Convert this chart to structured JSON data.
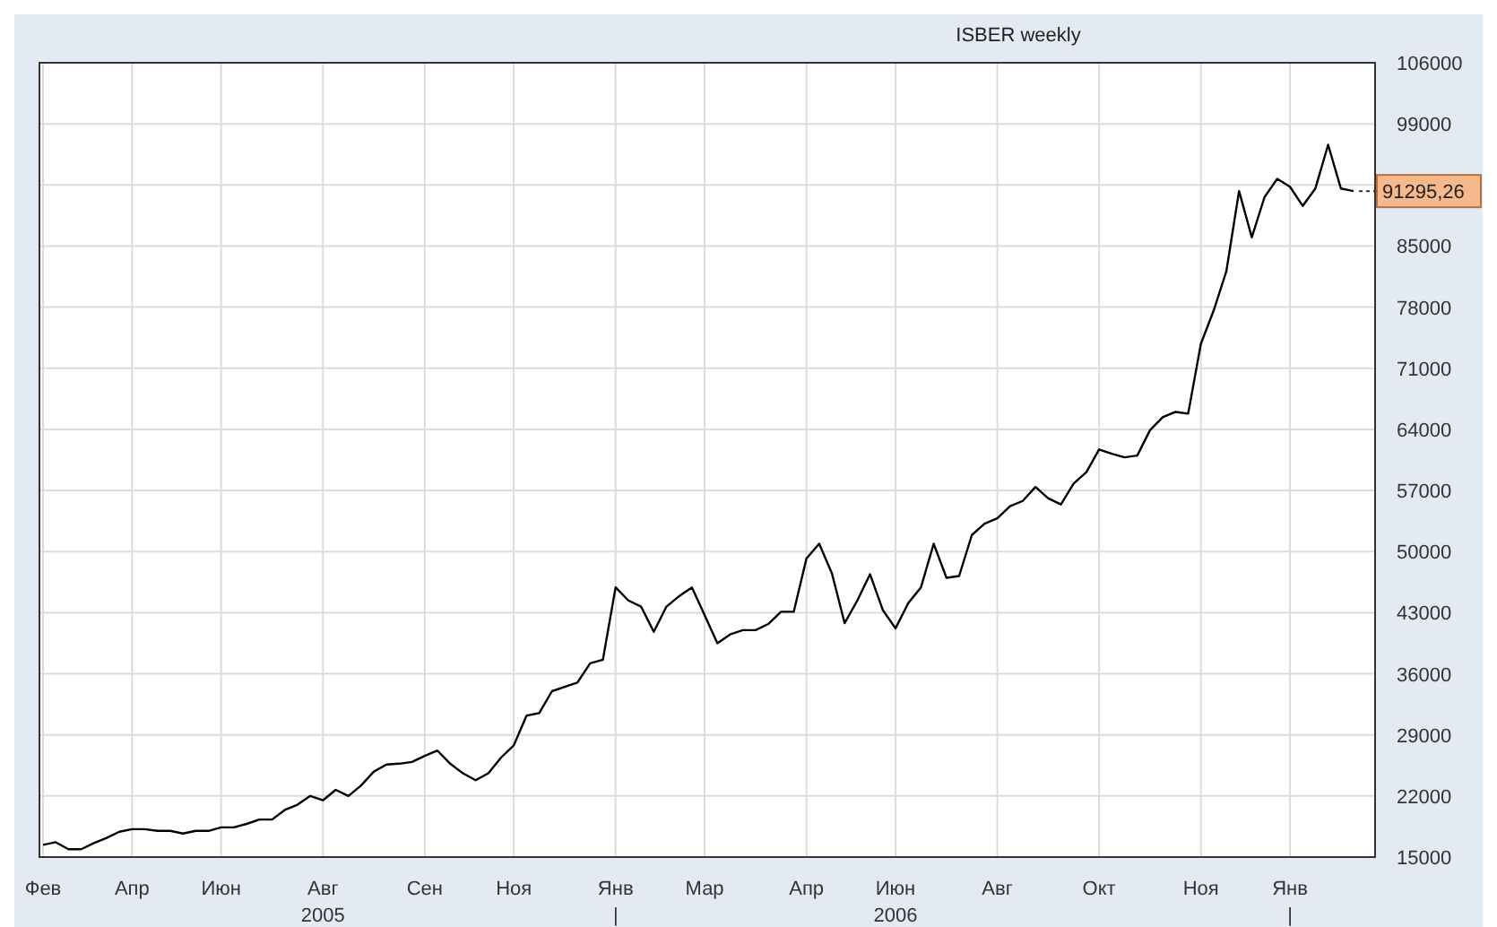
{
  "chart_data": {
    "type": "line",
    "title": "ISBER weekly",
    "categories": [
      "Фев",
      null,
      null,
      null,
      null,
      null,
      null,
      "Апр",
      null,
      null,
      null,
      null,
      null,
      null,
      "Июн",
      null,
      null,
      null,
      null,
      null,
      null,
      null,
      "Авг\n2005",
      null,
      null,
      null,
      null,
      null,
      null,
      null,
      "Сен",
      null,
      null,
      null,
      null,
      null,
      null,
      "Ноя",
      null,
      null,
      null,
      null,
      null,
      null,
      null,
      "Янв\n|",
      null,
      null,
      null,
      null,
      null,
      null,
      "Мар",
      null,
      null,
      null,
      null,
      null,
      null,
      null,
      "Апр",
      null,
      null,
      null,
      null,
      null,
      null,
      "Июн\n2006",
      null,
      null,
      null,
      null,
      null,
      null,
      null,
      "Авг",
      null,
      null,
      null,
      null,
      null,
      null,
      null,
      "Окт",
      null,
      null,
      null,
      null,
      null,
      null,
      null,
      "Ноя",
      null,
      null,
      null,
      null,
      null,
      null,
      "Янв\n|",
      null,
      null,
      null,
      null,
      null
    ],
    "series": [
      {
        "color": "#000000",
        "values": [
          16400,
          16700,
          15900,
          15900,
          16600,
          17200,
          17900,
          18200,
          18200,
          18000,
          18000,
          17700,
          18000,
          18000,
          18400,
          18400,
          18800,
          19300,
          19300,
          20400,
          21000,
          22000,
          21500,
          22700,
          22000,
          23200,
          24800,
          25600,
          25700,
          25900,
          26600,
          27200,
          25700,
          24600,
          23800,
          24600,
          26400,
          27800,
          31200,
          31500,
          34000,
          34500,
          35000,
          37200,
          37600,
          45900,
          44400,
          43700,
          40800,
          43700,
          44900,
          45900,
          42700,
          39500,
          40500,
          41000,
          41000,
          41700,
          43100,
          43100,
          49200,
          50900,
          47500,
          41800,
          44400,
          47400,
          43300,
          41200,
          44100,
          45900,
          50900,
          47000,
          47200,
          51900,
          53200,
          53800,
          55200,
          55800,
          57400,
          56100,
          55400,
          57800,
          59100,
          61700,
          61200,
          60800,
          61000,
          63900,
          65400,
          66000,
          65800,
          73800,
          77600,
          82100,
          91300,
          86000,
          90600,
          92700,
          91800,
          89600,
          91600,
          96600,
          91600,
          91295.26
        ]
      }
    ],
    "ylim": [
      15000,
      106000
    ],
    "yticks": [
      15000,
      22000,
      29000,
      36000,
      43000,
      50000,
      57000,
      64000,
      71000,
      78000,
      85000,
      {
        "value": 92000,
        "label": null
      },
      99000,
      106000
    ],
    "grid": true,
    "marker": "none",
    "line_style": "solid",
    "annotations": [
      "91295,26"
    ]
  }
}
